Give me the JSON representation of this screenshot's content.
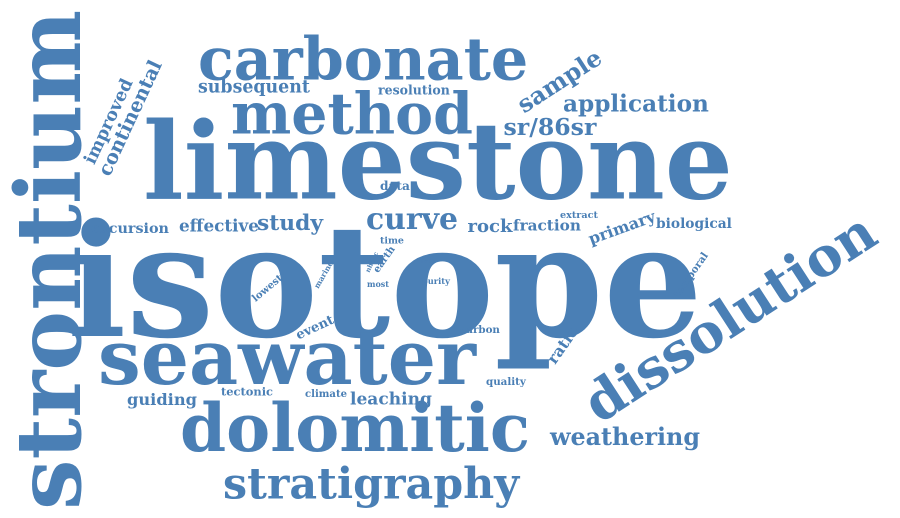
{
  "colors": {
    "word": "#4a7fb5",
    "background": "#ffffff"
  },
  "words": [
    {
      "id": "isotope",
      "text": "isotope"
    },
    {
      "id": "limestone",
      "text": "limestone"
    },
    {
      "id": "strontium",
      "text": "strontium"
    },
    {
      "id": "dissolution",
      "text": "dissolution"
    },
    {
      "id": "carbonate",
      "text": "carbonate"
    },
    {
      "id": "seawater",
      "text": "seawater"
    },
    {
      "id": "dolomitic",
      "text": "dolomitic"
    },
    {
      "id": "method",
      "text": "method"
    },
    {
      "id": "stratigraphy",
      "text": "stratigraphy"
    },
    {
      "id": "application",
      "text": "application"
    },
    {
      "id": "sample",
      "text": "sample"
    },
    {
      "id": "sr86sr",
      "text": "sr/86sr"
    },
    {
      "id": "weathering",
      "text": "weathering"
    },
    {
      "id": "curve",
      "text": "curve"
    },
    {
      "id": "continental",
      "text": "continental"
    },
    {
      "id": "improved",
      "text": "improved"
    },
    {
      "id": "subsequent",
      "text": "subsequent"
    },
    {
      "id": "resolution",
      "text": "resolution"
    },
    {
      "id": "study",
      "text": "study"
    },
    {
      "id": "effective",
      "text": "effective"
    },
    {
      "id": "excursion",
      "text": "excursion"
    },
    {
      "id": "rock",
      "text": "rock"
    },
    {
      "id": "fraction",
      "text": "fraction"
    },
    {
      "id": "primary",
      "text": "primary"
    },
    {
      "id": "biological",
      "text": "biological"
    },
    {
      "id": "extract",
      "text": "extract"
    },
    {
      "id": "data",
      "text": "data"
    },
    {
      "id": "time",
      "text": "time"
    },
    {
      "id": "earth",
      "text": "earth"
    },
    {
      "id": "nh4ac",
      "text": "nh4ac"
    },
    {
      "id": "most",
      "text": "most"
    },
    {
      "id": "rate",
      "text": "rate"
    },
    {
      "id": "purity",
      "text": "purity"
    },
    {
      "id": "marine",
      "text": "marine"
    },
    {
      "id": "lowest",
      "text": "lowest"
    },
    {
      "id": "event",
      "text": "event"
    },
    {
      "id": "carbon",
      "text": "carbon"
    },
    {
      "id": "ratio",
      "text": "ratio"
    },
    {
      "id": "temporal",
      "text": "temporal"
    },
    {
      "id": "quality",
      "text": "quality"
    },
    {
      "id": "climate",
      "text": "climate"
    },
    {
      "id": "leaching",
      "text": "leaching"
    },
    {
      "id": "tectonic",
      "text": "tectonic"
    },
    {
      "id": "guiding",
      "text": "guiding"
    }
  ]
}
